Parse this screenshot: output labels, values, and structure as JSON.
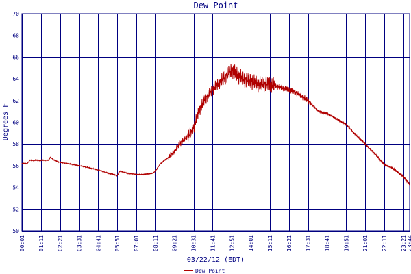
{
  "chart_data": {
    "type": "line",
    "title": "Dew Point",
    "xlabel": "03/22/12 (EDT)",
    "ylabel": "Degrees F",
    "ylim": [
      50,
      70
    ],
    "yticks": [
      50,
      52,
      54,
      56,
      58,
      60,
      62,
      64,
      66,
      68,
      70
    ],
    "xticks": [
      "00:01",
      "01:11",
      "02:21",
      "03:31",
      "04:41",
      "05:51",
      "07:01",
      "08:11",
      "09:21",
      "10:31",
      "11:41",
      "12:51",
      "14:01",
      "15:11",
      "16:21",
      "17:31",
      "18:41",
      "19:51",
      "21:01",
      "22:11",
      "23:21",
      "23:44"
    ],
    "grid": true,
    "legend_position": "bottom-center",
    "series": [
      {
        "name": "Dew Point",
        "color": "#b00000",
        "x": [
          "00:01",
          "00:20",
          "00:30",
          "01:11",
          "01:40",
          "01:45",
          "02:00",
          "02:21",
          "02:50",
          "03:31",
          "04:10",
          "04:41",
          "05:20",
          "05:51",
          "06:00",
          "06:30",
          "07:01",
          "07:30",
          "08:00",
          "08:11",
          "08:30",
          "09:00",
          "09:21",
          "09:40",
          "10:00",
          "10:20",
          "10:31",
          "10:50",
          "11:10",
          "11:41",
          "12:00",
          "12:20",
          "12:51",
          "13:20",
          "13:40",
          "14:01",
          "14:30",
          "15:11",
          "15:40",
          "16:21",
          "16:50",
          "17:31",
          "17:50",
          "18:10",
          "18:41",
          "19:10",
          "19:51",
          "20:20",
          "21:01",
          "21:40",
          "22:11",
          "22:40",
          "23:21",
          "23:44"
        ],
        "y": [
          56.2,
          56.2,
          56.5,
          56.5,
          56.5,
          56.8,
          56.5,
          56.3,
          56.2,
          56.0,
          55.8,
          55.6,
          55.3,
          55.1,
          55.5,
          55.3,
          55.2,
          55.2,
          55.3,
          55.5,
          56.2,
          56.8,
          57.3,
          58.0,
          58.5,
          59.0,
          59.5,
          61.0,
          62.0,
          63.0,
          63.5,
          64.0,
          64.8,
          64.2,
          63.9,
          63.8,
          63.5,
          63.5,
          63.3,
          63.0,
          62.7,
          62.0,
          61.5,
          61.0,
          60.8,
          60.4,
          59.8,
          59.0,
          58.0,
          57.0,
          56.1,
          55.8,
          55.0,
          54.3
        ]
      }
    ]
  }
}
